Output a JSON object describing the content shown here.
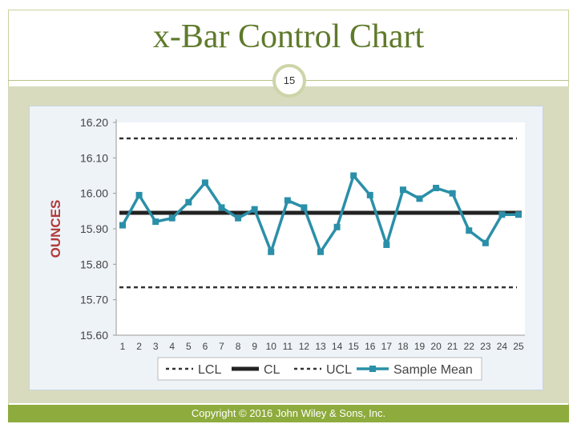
{
  "slide": {
    "title": "x-Bar Control Chart",
    "page_number": "15",
    "footer": "Copyright © 2016 John Wiley & Sons, Inc."
  },
  "colors": {
    "title": "#5f7a2b",
    "footer_bar": "#8eab3d",
    "series": "#2a8fa8",
    "center_line": "#222222",
    "limit_lines": "#333333"
  },
  "chart_data": {
    "type": "line",
    "title": "",
    "xlabel": "",
    "ylabel": "OUNCES",
    "ylim": [
      15.6,
      16.2
    ],
    "yticks": [
      "16.20",
      "16.10",
      "16.00",
      "15.90",
      "15.80",
      "15.70",
      "15.60"
    ],
    "x": [
      1,
      2,
      3,
      4,
      5,
      6,
      7,
      8,
      9,
      10,
      11,
      12,
      13,
      14,
      15,
      16,
      17,
      18,
      19,
      20,
      21,
      22,
      23,
      24,
      25
    ],
    "xticks": [
      "1",
      "2",
      "3",
      "4",
      "5",
      "6",
      "7",
      "8",
      "9",
      "10",
      "11",
      "12",
      "13",
      "14",
      "15",
      "16",
      "17",
      "18",
      "19",
      "20",
      "21",
      "22",
      "23",
      "24",
      "25"
    ],
    "lcl": 15.735,
    "cl": 15.945,
    "ucl": 16.155,
    "series": [
      {
        "name": "Sample Mean",
        "values": [
          15.91,
          15.995,
          15.92,
          15.93,
          15.975,
          16.03,
          15.96,
          15.93,
          15.955,
          15.835,
          15.98,
          15.96,
          15.835,
          15.905,
          16.05,
          15.995,
          15.855,
          16.01,
          15.985,
          16.015,
          16.0,
          15.895,
          15.86,
          15.94,
          15.94
        ]
      }
    ],
    "legend": {
      "placement": "bottom",
      "items": [
        {
          "label": "LCL",
          "style": "dashed"
        },
        {
          "label": "CL",
          "style": "solid"
        },
        {
          "label": "UCL",
          "style": "dashed"
        },
        {
          "label": "Sample Mean",
          "style": "marker-line"
        }
      ]
    }
  }
}
